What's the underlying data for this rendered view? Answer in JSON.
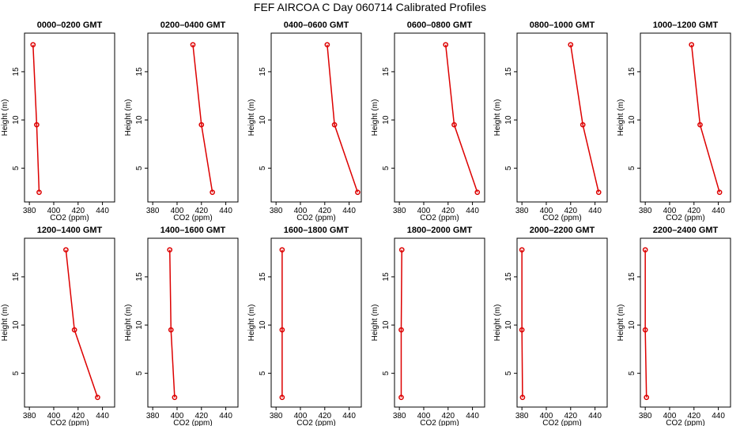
{
  "title": "FEF AIRCOA C  Day 060714  Calibrated Profiles",
  "colors": {
    "series": "#dd0000",
    "axis": "#000000"
  },
  "chart_data": [
    {
      "type": "line",
      "title": "0000–0200 GMT",
      "xlabel": "CO2 (ppm)",
      "ylabel": "Height (m)",
      "xlim": [
        376,
        450
      ],
      "ylim": [
        1.5,
        19
      ],
      "xticks": [
        380,
        400,
        420,
        440
      ],
      "yticks": [
        5,
        10,
        15
      ],
      "grid": false,
      "points": [
        {
          "x": 383,
          "y": 17.8
        },
        {
          "x": 386,
          "y": 9.5
        },
        {
          "x": 388,
          "y": 2.5
        }
      ]
    },
    {
      "type": "line",
      "title": "0200–0400 GMT",
      "xlabel": "CO2 (ppm)",
      "ylabel": "Height (m)",
      "xlim": [
        376,
        450
      ],
      "ylim": [
        1.5,
        19
      ],
      "xticks": [
        380,
        400,
        420,
        440
      ],
      "yticks": [
        5,
        10,
        15
      ],
      "grid": false,
      "points": [
        {
          "x": 413,
          "y": 17.8
        },
        {
          "x": 420,
          "y": 9.5
        },
        {
          "x": 429,
          "y": 2.5
        }
      ]
    },
    {
      "type": "line",
      "title": "0400–0600 GMT",
      "xlabel": "CO2 (ppm)",
      "ylabel": "Height (m)",
      "xlim": [
        376,
        450
      ],
      "ylim": [
        1.5,
        19
      ],
      "xticks": [
        380,
        400,
        420,
        440
      ],
      "yticks": [
        5,
        10,
        15
      ],
      "grid": false,
      "points": [
        {
          "x": 422,
          "y": 17.8
        },
        {
          "x": 428,
          "y": 9.5
        },
        {
          "x": 447,
          "y": 2.5
        }
      ]
    },
    {
      "type": "line",
      "title": "0600–0800 GMT",
      "xlabel": "CO2 (ppm)",
      "ylabel": "Height (m)",
      "xlim": [
        376,
        450
      ],
      "ylim": [
        1.5,
        19
      ],
      "xticks": [
        380,
        400,
        420,
        440
      ],
      "yticks": [
        5,
        10,
        15
      ],
      "grid": false,
      "points": [
        {
          "x": 418,
          "y": 17.8
        },
        {
          "x": 425,
          "y": 9.5
        },
        {
          "x": 444,
          "y": 2.5
        }
      ]
    },
    {
      "type": "line",
      "title": "0800–1000 GMT",
      "xlabel": "CO2 (ppm)",
      "ylabel": "Height (m)",
      "xlim": [
        376,
        450
      ],
      "ylim": [
        1.5,
        19
      ],
      "xticks": [
        380,
        400,
        420,
        440
      ],
      "yticks": [
        5,
        10,
        15
      ],
      "grid": false,
      "points": [
        {
          "x": 420,
          "y": 17.8
        },
        {
          "x": 430,
          "y": 9.5
        },
        {
          "x": 443,
          "y": 2.5
        }
      ]
    },
    {
      "type": "line",
      "title": "1000–1200 GMT",
      "xlabel": "CO2 (ppm)",
      "ylabel": "Height (m)",
      "xlim": [
        376,
        450
      ],
      "ylim": [
        1.5,
        19
      ],
      "xticks": [
        380,
        400,
        420,
        440
      ],
      "yticks": [
        5,
        10,
        15
      ],
      "grid": false,
      "points": [
        {
          "x": 418,
          "y": 17.8
        },
        {
          "x": 425,
          "y": 9.5
        },
        {
          "x": 441,
          "y": 2.5
        }
      ]
    },
    {
      "type": "line",
      "title": "1200–1400 GMT",
      "xlabel": "CO2 (ppm)",
      "ylabel": "Height (m)",
      "xlim": [
        376,
        450
      ],
      "ylim": [
        1.5,
        19
      ],
      "xticks": [
        380,
        400,
        420,
        440
      ],
      "yticks": [
        5,
        10,
        15
      ],
      "grid": false,
      "points": [
        {
          "x": 410,
          "y": 17.8
        },
        {
          "x": 417,
          "y": 9.5
        },
        {
          "x": 436,
          "y": 2.5
        }
      ]
    },
    {
      "type": "line",
      "title": "1400–1600 GMT",
      "xlabel": "CO2 (ppm)",
      "ylabel": "Height (m)",
      "xlim": [
        376,
        450
      ],
      "ylim": [
        1.5,
        19
      ],
      "xticks": [
        380,
        400,
        420,
        440
      ],
      "yticks": [
        5,
        10,
        15
      ],
      "grid": false,
      "points": [
        {
          "x": 394,
          "y": 17.8
        },
        {
          "x": 395,
          "y": 9.5
        },
        {
          "x": 398,
          "y": 2.5
        }
      ]
    },
    {
      "type": "line",
      "title": "1600–1800 GMT",
      "xlabel": "CO2 (ppm)",
      "ylabel": "Height (m)",
      "xlim": [
        376,
        450
      ],
      "ylim": [
        1.5,
        19
      ],
      "xticks": [
        380,
        400,
        420,
        440
      ],
      "yticks": [
        5,
        10,
        15
      ],
      "grid": false,
      "points": [
        {
          "x": 385,
          "y": 17.8
        },
        {
          "x": 385,
          "y": 9.5
        },
        {
          "x": 385,
          "y": 2.5
        }
      ]
    },
    {
      "type": "line",
      "title": "1800–2000 GMT",
      "xlabel": "CO2 (ppm)",
      "ylabel": "Height (m)",
      "xlim": [
        376,
        450
      ],
      "ylim": [
        1.5,
        19
      ],
      "xticks": [
        380,
        400,
        420,
        440
      ],
      "yticks": [
        5,
        10,
        15
      ],
      "grid": false,
      "points": [
        {
          "x": 382,
          "y": 17.8
        },
        {
          "x": 381.5,
          "y": 9.5
        },
        {
          "x": 381.5,
          "y": 2.5
        }
      ]
    },
    {
      "type": "line",
      "title": "2000–2200 GMT",
      "xlabel": "CO2 (ppm)",
      "ylabel": "Height (m)",
      "xlim": [
        376,
        450
      ],
      "ylim": [
        1.5,
        19
      ],
      "xticks": [
        380,
        400,
        420,
        440
      ],
      "yticks": [
        5,
        10,
        15
      ],
      "grid": false,
      "points": [
        {
          "x": 380,
          "y": 17.8
        },
        {
          "x": 380,
          "y": 9.5
        },
        {
          "x": 380.5,
          "y": 2.5
        }
      ]
    },
    {
      "type": "line",
      "title": "2200–2400 GMT",
      "xlabel": "CO2 (ppm)",
      "ylabel": "Height (m)",
      "xlim": [
        376,
        450
      ],
      "ylim": [
        1.5,
        19
      ],
      "xticks": [
        380,
        400,
        420,
        440
      ],
      "yticks": [
        5,
        10,
        15
      ],
      "grid": false,
      "points": [
        {
          "x": 380,
          "y": 17.8
        },
        {
          "x": 380,
          "y": 9.5
        },
        {
          "x": 381,
          "y": 2.5
        }
      ]
    }
  ]
}
